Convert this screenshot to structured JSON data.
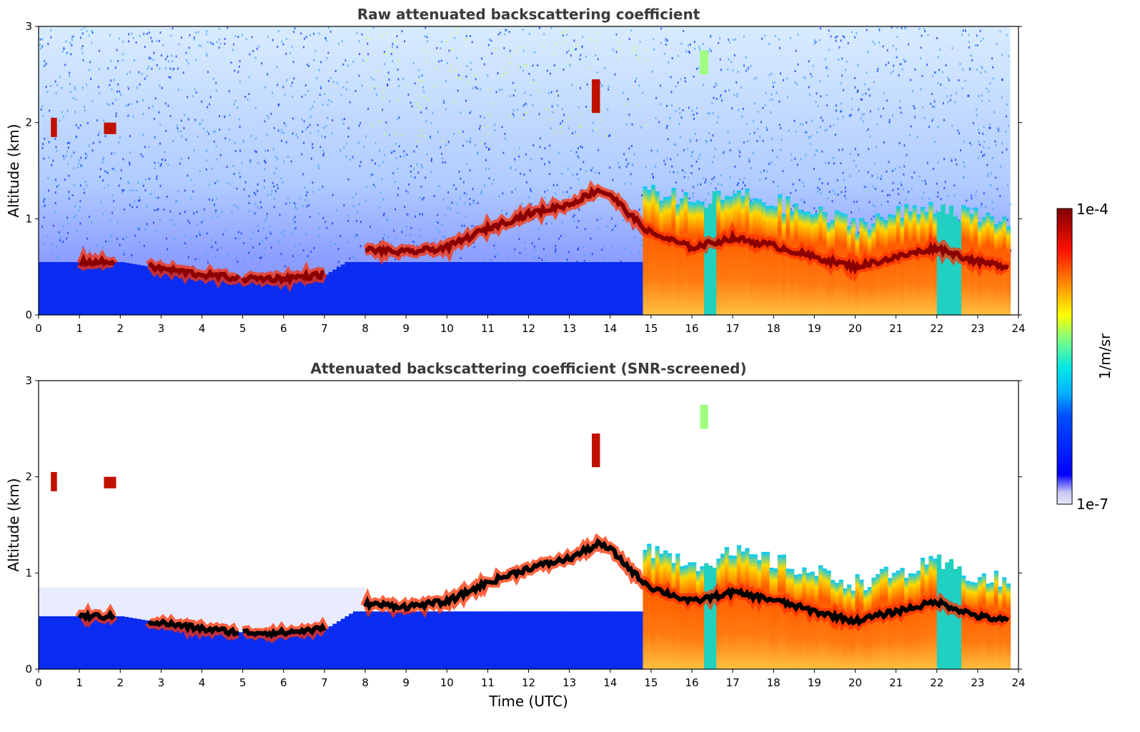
{
  "chart_data": [
    {
      "type": "heatmap",
      "title": "Raw attenuated backscattering coefficient",
      "xlabel": "",
      "ylabel": "Altitude (km)",
      "xlim": [
        0,
        24
      ],
      "ylim": [
        0,
        3
      ],
      "x_ticks": [
        0,
        1,
        2,
        3,
        4,
        5,
        6,
        7,
        8,
        9,
        10,
        11,
        12,
        13,
        14,
        15,
        16,
        17,
        18,
        19,
        20,
        21,
        22,
        23,
        24
      ],
      "y_ticks": [
        0,
        1,
        2,
        3
      ],
      "grid": false,
      "aerosol_layer_top_km": {
        "time": [
          1,
          2,
          2.7,
          4,
          5,
          6,
          7,
          8,
          9,
          10,
          11,
          12,
          13,
          13.7,
          14,
          14.7,
          15,
          16,
          17,
          18,
          19,
          20,
          21,
          22,
          23,
          23.8
        ],
        "height": [
          0.55,
          0.55,
          0.5,
          0.42,
          0.38,
          0.38,
          0.42,
          0.68,
          0.65,
          0.7,
          0.9,
          1.05,
          1.15,
          1.3,
          1.25,
          0.95,
          0.85,
          0.7,
          0.8,
          0.72,
          0.6,
          0.5,
          0.6,
          0.7,
          0.55,
          0.5
        ]
      },
      "cloud_features": [
        {
          "time_start": 0.3,
          "time_end": 0.45,
          "alt_bottom": 1.85,
          "alt_top": 2.05
        },
        {
          "time_start": 1.6,
          "time_end": 1.9,
          "alt_bottom": 1.88,
          "alt_top": 2.0
        },
        {
          "time_start": 13.55,
          "time_end": 13.75,
          "alt_bottom": 2.1,
          "alt_top": 2.45
        },
        {
          "time_start": 16.2,
          "time_end": 16.4,
          "alt_bottom": 2.5,
          "alt_top": 2.75
        }
      ]
    },
    {
      "type": "heatmap",
      "title": "Attenuated backscattering coefficient (SNR-screened)",
      "xlabel": "Time (UTC)",
      "ylabel": "Altitude (km)",
      "xlim": [
        0,
        24
      ],
      "ylim": [
        0,
        3
      ],
      "x_ticks": [
        0,
        1,
        2,
        3,
        4,
        5,
        6,
        7,
        8,
        9,
        10,
        11,
        12,
        13,
        14,
        15,
        16,
        17,
        18,
        19,
        20,
        21,
        22,
        23,
        24
      ],
      "y_ticks": [
        0,
        1,
        2,
        3
      ],
      "grid": false
    }
  ],
  "colorbar": {
    "label": "1/m/sr",
    "max_label": "1e-4",
    "min_label": "1e-7",
    "colormap": [
      "#e6e6f5",
      "#0000ff",
      "#00a0ff",
      "#00e6e6",
      "#80ff80",
      "#ffff00",
      "#ff8000",
      "#ff0000",
      "#800000"
    ]
  },
  "colors": {
    "background_noise": "#2040ff",
    "boundary_layer": "#0a28f0",
    "aerosol_high": "#ff4000",
    "aerosol_peak": "#8b0000",
    "screened_peak": "#000000"
  }
}
